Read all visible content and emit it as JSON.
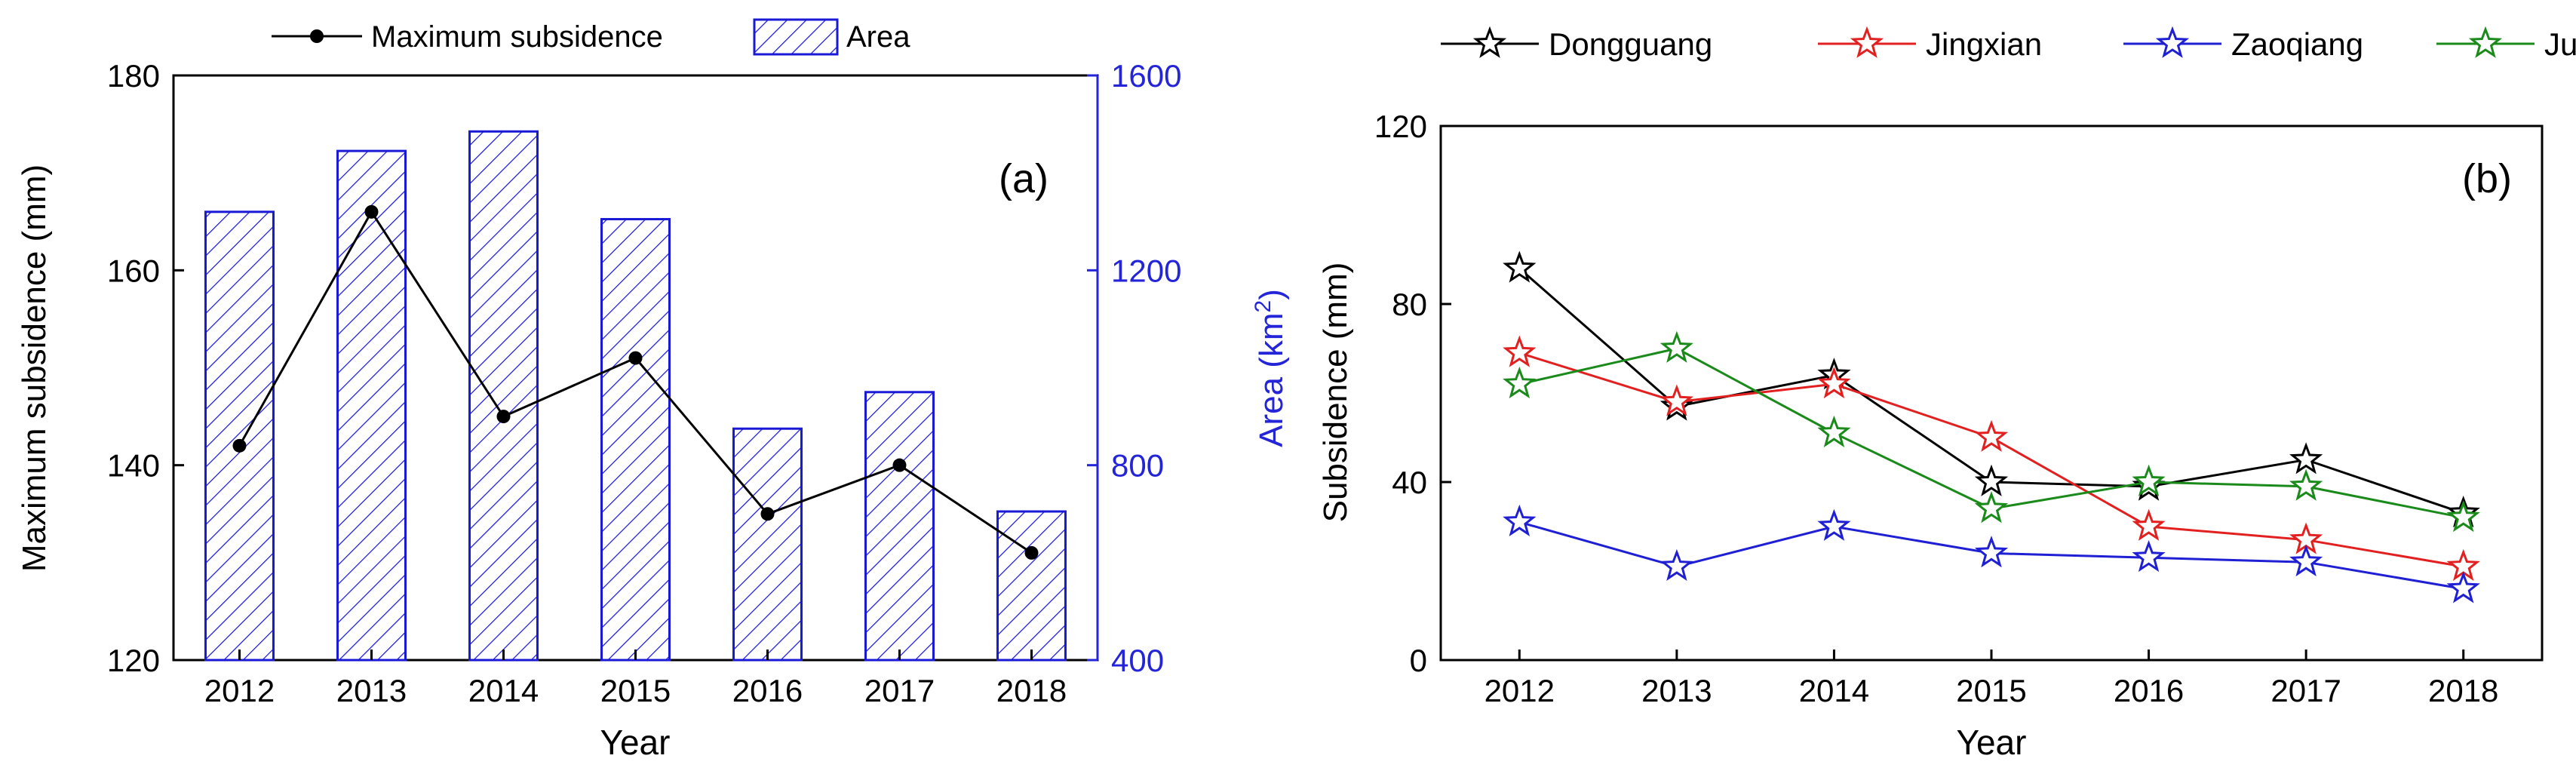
{
  "chart_data": [
    {
      "panel": "(a)",
      "type": "bar+line",
      "categories": [
        "2012",
        "2013",
        "2014",
        "2015",
        "2016",
        "2017",
        "2018"
      ],
      "xlabel": "Year",
      "ylabel_left": "Maximum subsidence (mm)",
      "ylabel_right_prefix": "Area (km",
      "ylabel_right_sup": "2",
      "ylabel_right_suffix": ")",
      "ylim_left": [
        120,
        180
      ],
      "yticks_left": [
        120,
        140,
        160,
        180
      ],
      "ylim_right": [
        400,
        1600
      ],
      "yticks_right": [
        400,
        800,
        1200,
        1600
      ],
      "series": [
        {
          "name": "Maximum subsidence",
          "axis": "left",
          "kind": "line",
          "values": [
            142,
            166,
            145,
            151,
            135,
            140,
            131
          ]
        },
        {
          "name": "Area",
          "axis": "right",
          "kind": "bar",
          "values": [
            1320,
            1445,
            1485,
            1305,
            875,
            950,
            705
          ]
        }
      ],
      "legend_position": "top",
      "colors": {
        "line": "#000000",
        "bar": "#1a1ad6",
        "right_axis": "#2424d8"
      }
    },
    {
      "panel": "(b)",
      "type": "line",
      "categories": [
        "2012",
        "2013",
        "2014",
        "2015",
        "2016",
        "2017",
        "2018"
      ],
      "xlabel": "Year",
      "ylabel": "Subsidence (mm)",
      "ylim": [
        0,
        120
      ],
      "yticks": [
        0,
        40,
        80,
        120
      ],
      "series": [
        {
          "name": "Dongguang",
          "color": "#000000",
          "values": [
            88,
            57,
            64,
            40,
            39,
            45,
            33
          ]
        },
        {
          "name": "Jingxian",
          "color": "#e32020",
          "values": [
            69,
            58,
            62,
            50,
            30,
            27,
            21
          ]
        },
        {
          "name": "Zaoqiang",
          "color": "#1f1fd4",
          "values": [
            31,
            21,
            30,
            24,
            23,
            22,
            16
          ]
        },
        {
          "name": "Julu",
          "color": "#1a8a1a",
          "values": [
            62,
            70,
            51,
            34,
            40,
            39,
            32
          ]
        }
      ],
      "legend_position": "top"
    }
  ]
}
